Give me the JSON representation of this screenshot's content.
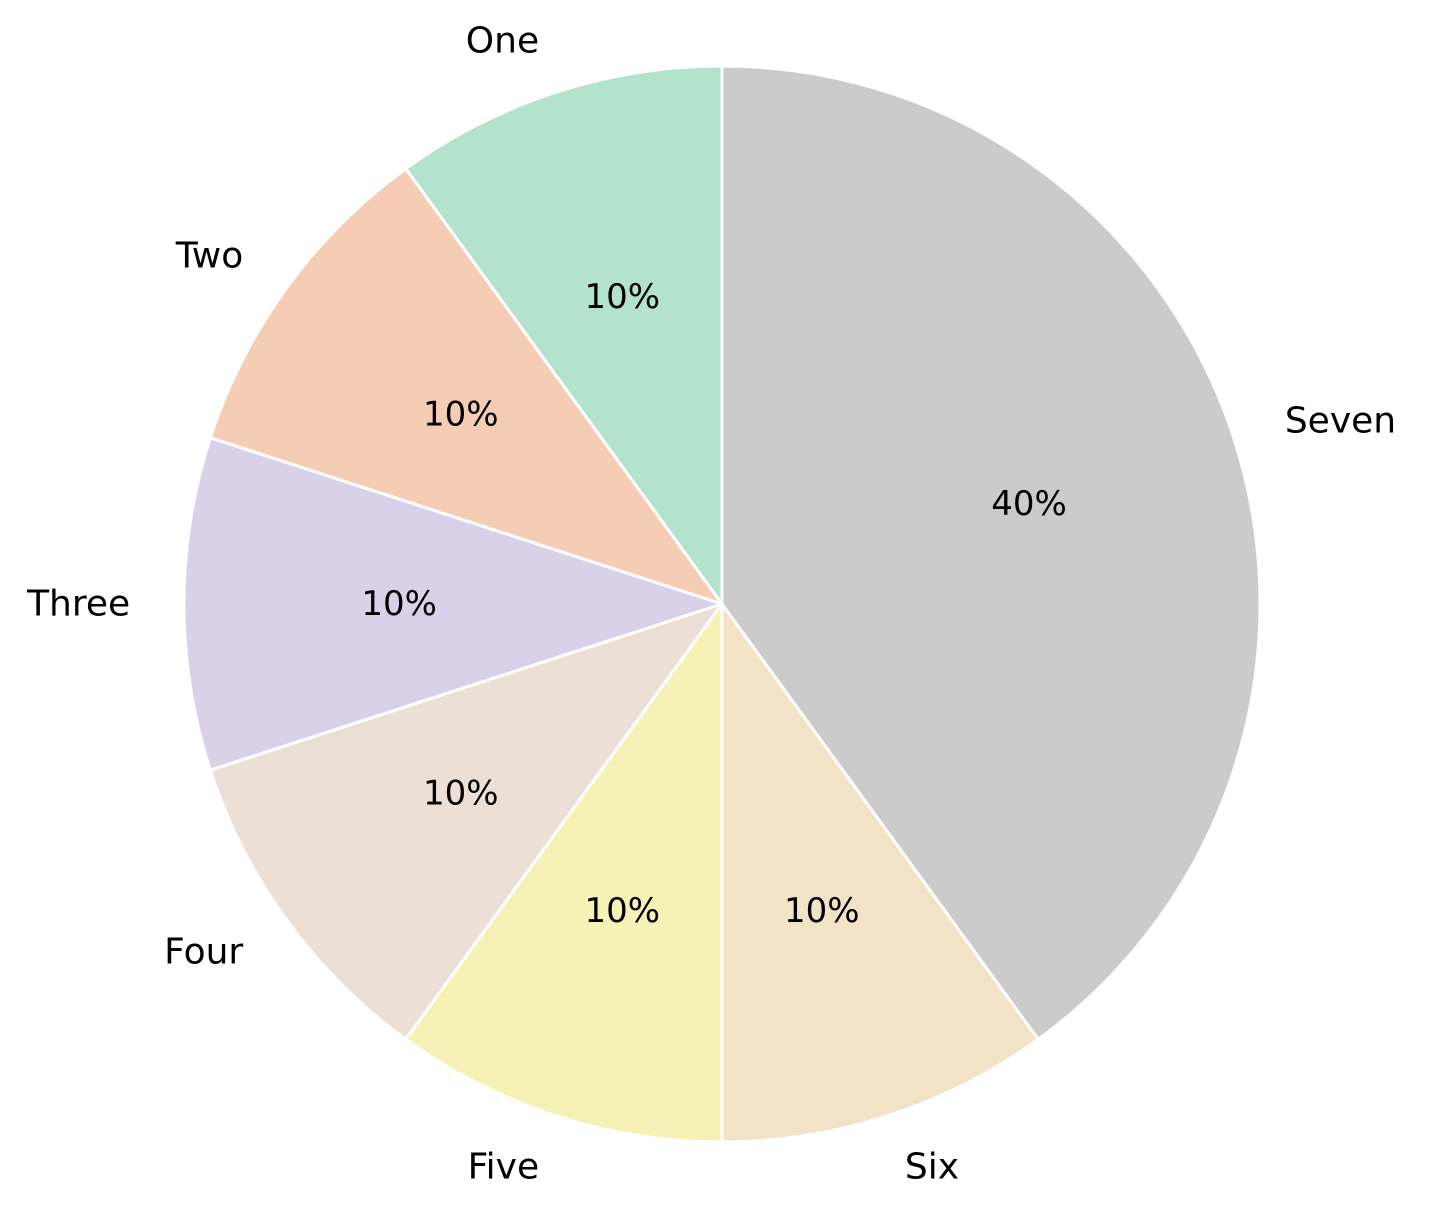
{
  "chart_data": {
    "type": "pie",
    "categories": [
      "One",
      "Two",
      "Three",
      "Four",
      "Five",
      "Six",
      "Seven"
    ],
    "values": [
      10,
      10,
      10,
      10,
      10,
      10,
      40
    ],
    "value_labels": [
      "10%",
      "10%",
      "10%",
      "10%",
      "10%",
      "10%",
      "40%"
    ],
    "colors": [
      "#b3e2cd",
      "#f5cdb4",
      "#d9d1e8",
      "#ece0d6",
      "#f6f2b5",
      "#f2e3c7",
      "#cbcbcb"
    ],
    "start_angle_deg": 90,
    "direction": "counterclockwise",
    "slice_edge_color": "#ffffff",
    "title": "",
    "legend": "none"
  }
}
